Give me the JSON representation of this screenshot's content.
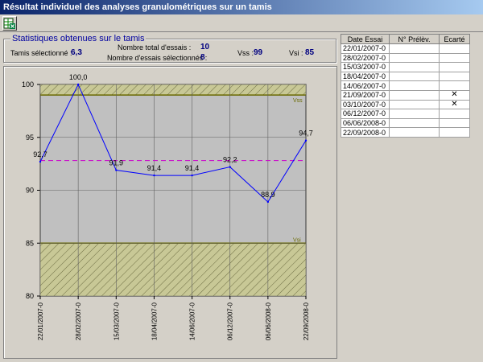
{
  "window": {
    "title": "Résultat individuel des analyses granulométriques sur un tamis"
  },
  "toolbar": {
    "export_icon": "excel-export-icon"
  },
  "stats": {
    "legend": "Statistiques obtenues sur le tamis",
    "tamis_label": "Tamis sélectionné :",
    "tamis_value": "6,3",
    "total_label": "Nombre total d'essais :",
    "total_value": "10",
    "selected_label": "Nombre d'essais sélectionnés :",
    "selected_value": "8",
    "vss_label": "Vss :",
    "vss_value": "99",
    "vsi_label": "Vsi :",
    "vsi_value": "85"
  },
  "chart_data": {
    "type": "line",
    "categories": [
      "22/01/2007-0",
      "28/02/2007-0",
      "15/03/2007-0",
      "18/04/2007-0",
      "14/06/2007-0",
      "06/12/2007-0",
      "06/06/2008-0",
      "22/09/2008-0"
    ],
    "values": [
      92.7,
      100.0,
      91.9,
      91.4,
      91.4,
      92.2,
      88.9,
      94.7
    ],
    "data_labels": [
      "92,7",
      "100,0",
      "91,9",
      "91,4",
      "91,4",
      "92,2",
      "88,9",
      "94,7"
    ],
    "y_ticks": [
      "80",
      "85",
      "90",
      "95",
      "100"
    ],
    "ylim": [
      80,
      100
    ],
    "mean": 92.8,
    "vss": 99,
    "vsi": 85,
    "vss_label": "Vss",
    "vsi_label": "Vsi",
    "grid": true,
    "colors": {
      "line": "#0000ff",
      "mean": "#cc00cc",
      "band_fill": "#c8c896",
      "band_edge": "#6a6a00",
      "plot_bg": "#c0c0c0"
    }
  },
  "table": {
    "headers": [
      "Date Essai",
      "N° Prélèv.",
      "Ecarté"
    ],
    "rows": [
      {
        "date": "22/01/2007-0",
        "num": "",
        "ecarte": ""
      },
      {
        "date": "28/02/2007-0",
        "num": "",
        "ecarte": ""
      },
      {
        "date": "15/03/2007-0",
        "num": "",
        "ecarte": ""
      },
      {
        "date": "18/04/2007-0",
        "num": "",
        "ecarte": ""
      },
      {
        "date": "14/06/2007-0",
        "num": "",
        "ecarte": ""
      },
      {
        "date": "21/09/2007-0",
        "num": "",
        "ecarte": "✕"
      },
      {
        "date": "03/10/2007-0",
        "num": "",
        "ecarte": "✕"
      },
      {
        "date": "06/12/2007-0",
        "num": "",
        "ecarte": ""
      },
      {
        "date": "06/06/2008-0",
        "num": "",
        "ecarte": ""
      },
      {
        "date": "22/09/2008-0",
        "num": "",
        "ecarte": ""
      }
    ]
  }
}
